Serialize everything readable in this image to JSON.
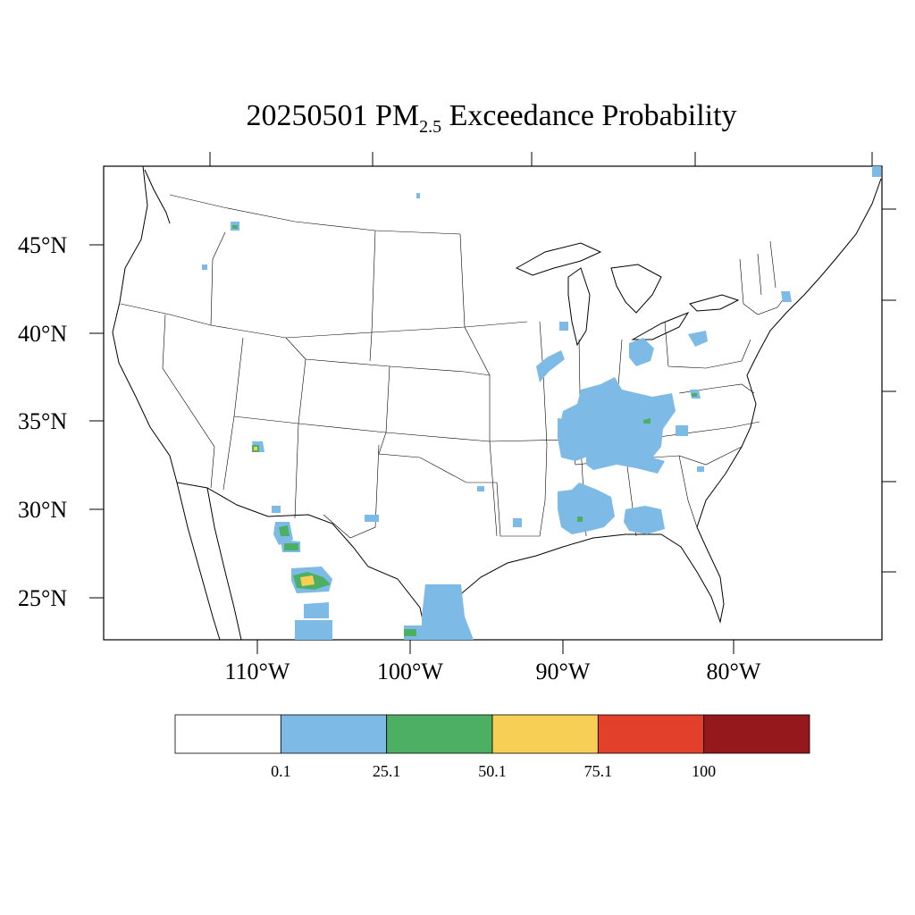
{
  "title": {
    "prefix": "20250501 PM",
    "subscript": "2.5",
    "suffix": " Exceedance Probability"
  },
  "lat_labels": [
    "45°N",
    "40°N",
    "35°N",
    "30°N",
    "25°N"
  ],
  "lon_labels": [
    "110°W",
    "100°W",
    "90°W",
    "80°W"
  ],
  "colorbar": {
    "colors": [
      "#ffffff",
      "#7dbbe6",
      "#4caf63",
      "#f8cf55",
      "#e2402a",
      "#95181d"
    ],
    "labels": [
      "0.1",
      "25.1",
      "50.1",
      "75.1",
      "100"
    ]
  },
  "probability_colors": {
    "low": "#7dbbe6",
    "moderate": "#4caf63",
    "high": "#f8cf55"
  }
}
